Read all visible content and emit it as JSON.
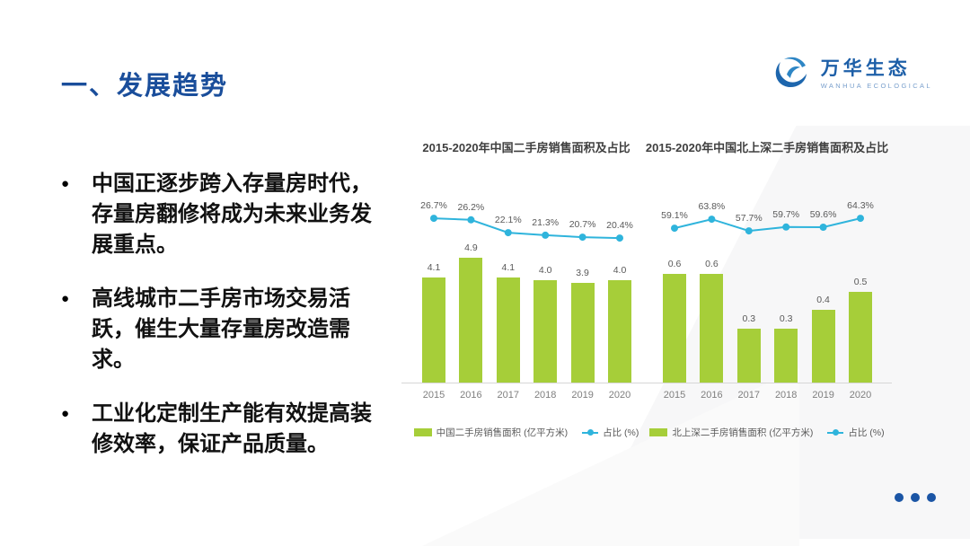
{
  "slide": {
    "section_title": "一、发展趋势",
    "logo": {
      "name": "万华生态",
      "subtitle": "WANHUA ECOLOGICAL"
    },
    "bullets": [
      "中国正逐步跨入存量房时代，存量房翻修将成为未来业务发展重点。",
      "高线城市二手房市场交易活跃，催生大量存量房改造需求。",
      "工业化定制生产能有效提高装修效率，保证产品质量。"
    ],
    "pagination_dots": 3,
    "colors": {
      "title_navy": "#1a4e9b",
      "bar_green": "#a6ce39",
      "line_cyan": "#2fb4dc",
      "dot_navy": "#1b55a5"
    }
  },
  "chart_data": [
    {
      "type": "bar+line",
      "title": "2015-2020年中国二手房销售面积及占比",
      "categories": [
        "2015",
        "2016",
        "2017",
        "2018",
        "2019",
        "2020"
      ],
      "series": [
        {
          "name": "中国二手房销售面积 (亿平方米)",
          "type": "bar",
          "values": [
            4.1,
            4.9,
            4.1,
            4.0,
            3.9,
            4.0
          ],
          "labels": [
            "4.1",
            "4.9",
            "4.1",
            "4.0",
            "3.9",
            "4.0"
          ],
          "color": "#a6ce39",
          "ylim": [
            0,
            5.1
          ]
        },
        {
          "name": "占比 (%)",
          "type": "line",
          "values": [
            26.7,
            26.2,
            22.1,
            21.3,
            20.7,
            20.4
          ],
          "labels": [
            "26.7%",
            "26.2%",
            "22.1%",
            "21.3%",
            "20.7%",
            "20.4%"
          ],
          "color": "#2fb4dc",
          "ylim": [
            15,
            35
          ]
        }
      ],
      "legend_position": "bottom",
      "grid": false
    },
    {
      "type": "bar+line",
      "title": "2015-2020年中国北上深二手房销售面积及占比",
      "categories": [
        "2015",
        "2016",
        "2017",
        "2018",
        "2019",
        "2020"
      ],
      "series": [
        {
          "name": "北上深二手房销售面积 (亿平方米)",
          "type": "bar",
          "values": [
            0.6,
            0.6,
            0.3,
            0.3,
            0.4,
            0.5
          ],
          "labels": [
            "0.6",
            "0.6",
            "0.3",
            "0.3",
            "0.4",
            "0.5"
          ],
          "color": "#a6ce39",
          "ylim": [
            0,
            0.72
          ]
        },
        {
          "name": "占比 (%)",
          "type": "line",
          "values": [
            59.1,
            63.8,
            57.7,
            59.7,
            59.6,
            64.3
          ],
          "labels": [
            "59.1%",
            "63.8%",
            "57.7%",
            "59.7%",
            "59.6%",
            "64.3%"
          ],
          "color": "#2fb4dc",
          "ylim": [
            45,
            78
          ]
        }
      ],
      "legend_position": "bottom",
      "grid": false
    }
  ]
}
